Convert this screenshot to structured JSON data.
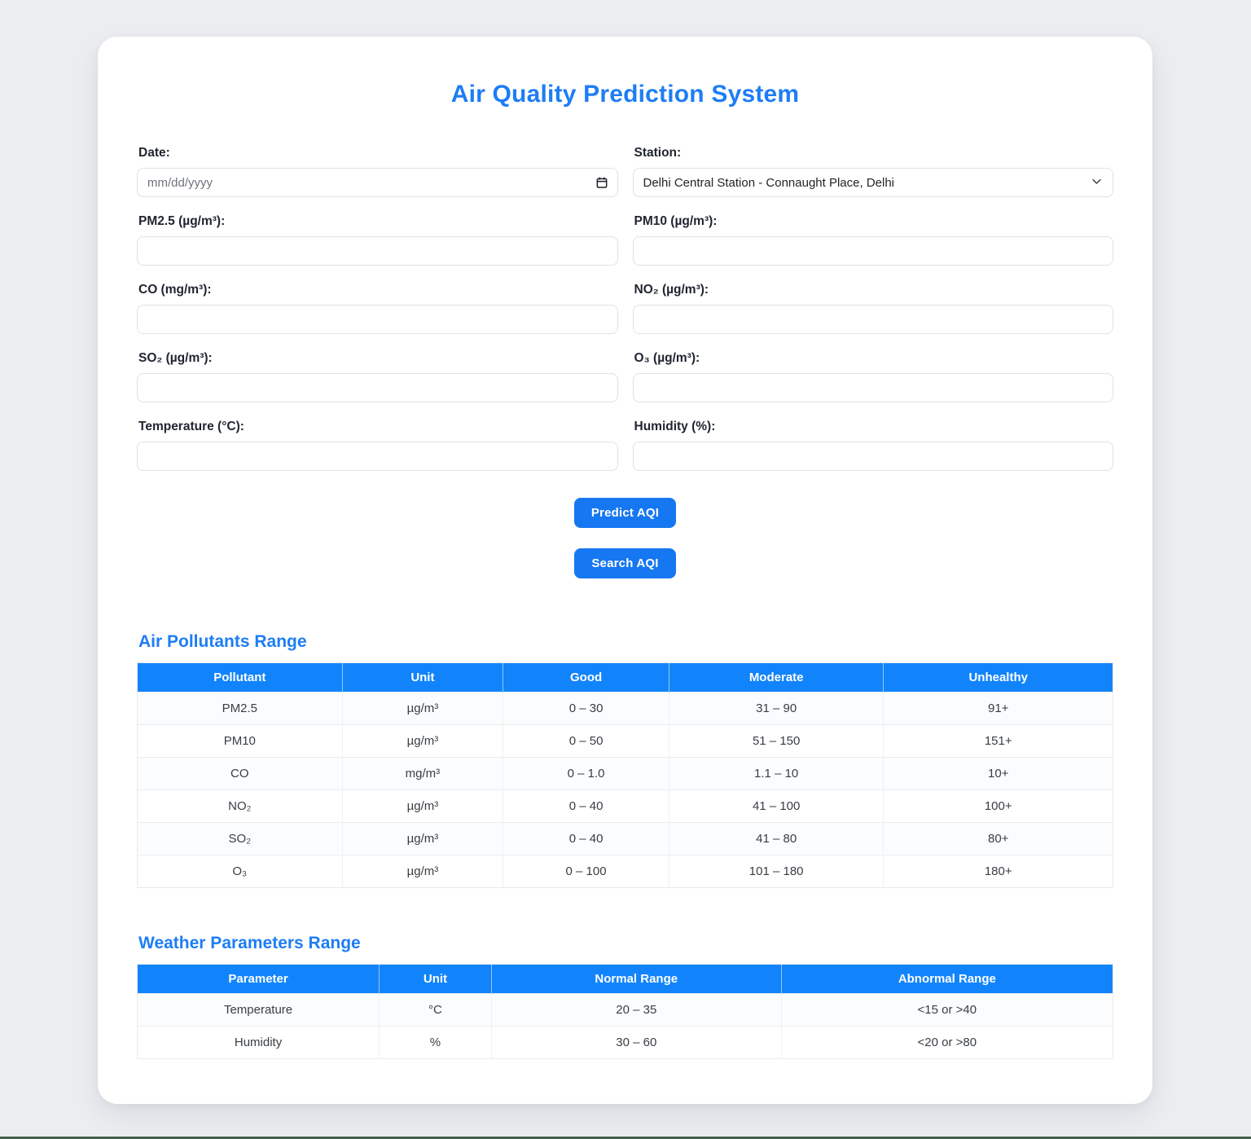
{
  "title": "Air Quality Prediction System",
  "colors": {
    "accent": "#1e7df5",
    "table_header": "#1284fb",
    "button": "#1677f2",
    "page_bg": "#ebedf0",
    "bottom_line": "#40604c"
  },
  "form": {
    "fields": [
      {
        "id": "date",
        "label": "Date:",
        "type": "date",
        "value": "",
        "placeholder": "mm/dd/yyyy",
        "icon": "calendar-icon"
      },
      {
        "id": "station",
        "label": "Station:",
        "type": "select",
        "value": "Delhi Central Station - Connaught Place, Delhi",
        "icon": "chevron-down-icon"
      },
      {
        "id": "pm25",
        "label": "PM2.5 (µg/m³):",
        "type": "text",
        "value": "",
        "placeholder": ""
      },
      {
        "id": "pm10",
        "label": "PM10 (µg/m³):",
        "type": "text",
        "value": "",
        "placeholder": ""
      },
      {
        "id": "co",
        "label": "CO (mg/m³):",
        "type": "text",
        "value": "",
        "placeholder": ""
      },
      {
        "id": "no2",
        "label": "NO₂ (µg/m³):",
        "type": "text",
        "value": "",
        "placeholder": ""
      },
      {
        "id": "so2",
        "label": "SO₂ (µg/m³):",
        "type": "text",
        "value": "",
        "placeholder": ""
      },
      {
        "id": "o3",
        "label": "O₃ (µg/m³):",
        "type": "text",
        "value": "",
        "placeholder": ""
      },
      {
        "id": "temperature",
        "label": "Temperature (°C):",
        "type": "text",
        "value": "",
        "placeholder": ""
      },
      {
        "id": "humidity",
        "label": "Humidity (%):",
        "type": "text",
        "value": "",
        "placeholder": ""
      }
    ],
    "buttons": [
      {
        "id": "predict",
        "label": "Predict AQI"
      },
      {
        "id": "search",
        "label": "Search AQI"
      }
    ]
  },
  "pollutants_table": {
    "heading": "Air Pollutants Range",
    "columns": [
      "Pollutant",
      "Unit",
      "Good",
      "Moderate",
      "Unhealthy"
    ],
    "rows": [
      [
        "PM2.5",
        "µg/m³",
        "0 – 30",
        "31 – 90",
        "91+"
      ],
      [
        "PM10",
        "µg/m³",
        "0 – 50",
        "51 – 150",
        "151+"
      ],
      [
        "CO",
        "mg/m³",
        "0 – 1.0",
        "1.1 – 10",
        "10+"
      ],
      [
        "NO₂",
        "µg/m³",
        "0 – 40",
        "41 – 100",
        "100+"
      ],
      [
        "SO₂",
        "µg/m³",
        "0 – 40",
        "41 – 80",
        "80+"
      ],
      [
        "O₃",
        "µg/m³",
        "0 – 100",
        "101 – 180",
        "180+"
      ]
    ]
  },
  "weather_table": {
    "heading": "Weather Parameters Range",
    "columns": [
      "Parameter",
      "Unit",
      "Normal Range",
      "Abnormal Range"
    ],
    "rows": [
      [
        "Temperature",
        "°C",
        "20 – 35",
        "<15 or >40"
      ],
      [
        "Humidity",
        "%",
        "30 – 60",
        "<20 or >80"
      ]
    ]
  }
}
